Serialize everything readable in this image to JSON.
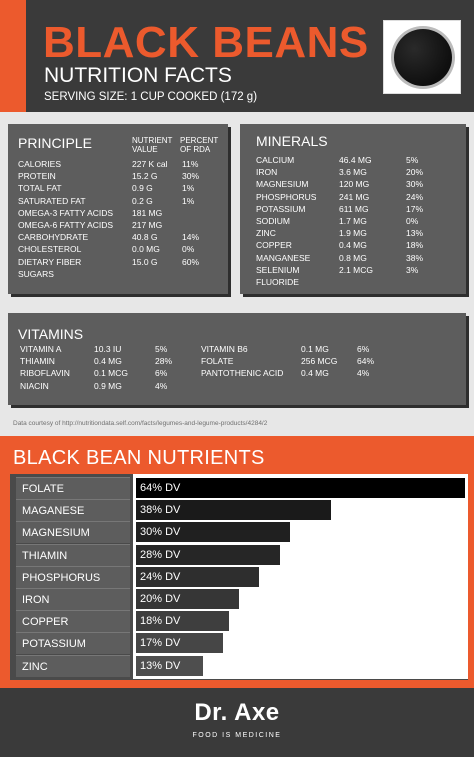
{
  "header": {
    "title": "BLACK BEANS",
    "subtitle": "NUTRITION FACTS",
    "serving": "SERVING SIZE: 1 CUP COOKED (172 g)",
    "colors": {
      "accent": "#ec5a2d",
      "dark": "#3a3a3a",
      "panel": "#5d5d5d"
    }
  },
  "principle": {
    "title": "PRINCIPLE",
    "col_value": "NUTRIENT VALUE",
    "col_value_l1": "NUTRIENT",
    "col_value_l2": "VALUE",
    "col_rda_l1": "PERCENT",
    "col_rda_l2": "OF RDA",
    "rows": [
      {
        "name": "CALORIES",
        "value": "227 K cal",
        "rda": "11%"
      },
      {
        "name": "PROTEIN",
        "value": "15.2 G",
        "rda": "30%"
      },
      {
        "name": "TOTAL FAT",
        "value": "0.9 G",
        "rda": "1%"
      },
      {
        "name": "SATURATED FAT",
        "value": "0.2 G",
        "rda": "1%"
      },
      {
        "name": "OMEGA-3 FATTY ACIDS",
        "value": "181 MG",
        "rda": ""
      },
      {
        "name": "OMEGA-6 FATTY ACIDS",
        "value": "217 MG",
        "rda": ""
      },
      {
        "name": "CARBOHYDRATE",
        "value": "40.8 G",
        "rda": "14%"
      },
      {
        "name": "CHOLESTEROL",
        "value": "0.0 MG",
        "rda": "0%"
      },
      {
        "name": "DIETARY FIBER",
        "value": "15.0 G",
        "rda": "60%"
      },
      {
        "name": "SUGARS",
        "value": "",
        "rda": ""
      }
    ]
  },
  "minerals": {
    "title": "MINERALS",
    "rows": [
      {
        "name": "CALCIUM",
        "value": "46.4 MG",
        "rda": "5%"
      },
      {
        "name": "IRON",
        "value": "3.6 MG",
        "rda": "20%"
      },
      {
        "name": "MAGNESIUM",
        "value": "120 MG",
        "rda": "30%"
      },
      {
        "name": "PHOSPHORUS",
        "value": "241 MG",
        "rda": "24%"
      },
      {
        "name": "POTASSIUM",
        "value": "611 MG",
        "rda": "17%"
      },
      {
        "name": "SODIUM",
        "value": "1.7 MG",
        "rda": "0%"
      },
      {
        "name": "ZINC",
        "value": "1.9 MG",
        "rda": "13%"
      },
      {
        "name": "COPPER",
        "value": "0.4 MG",
        "rda": "18%"
      },
      {
        "name": "MANGANESE",
        "value": "0.8 MG",
        "rda": "38%"
      },
      {
        "name": "SELENIUM",
        "value": "2.1 MCG",
        "rda": "3%"
      },
      {
        "name": "FLUORIDE",
        "value": "",
        "rda": ""
      }
    ]
  },
  "vitamins": {
    "title": "VITAMINS",
    "left": [
      {
        "name": "VITAMIN A",
        "value": "10.3 IU",
        "rda": "5%"
      },
      {
        "name": "THIAMIN",
        "value": "0.4 MG",
        "rda": "28%"
      },
      {
        "name": "RIBOFLAVIN",
        "value": "0.1 MCG",
        "rda": "6%"
      },
      {
        "name": "NIACIN",
        "value": "0.9 MG",
        "rda": "4%"
      }
    ],
    "right": [
      {
        "name": "VITAMIN B6",
        "value": "0.1 MG",
        "rda": "6%"
      },
      {
        "name": "FOLATE",
        "value": "256 MCG",
        "rda": "64%"
      },
      {
        "name": "PANTOTHENIC ACID",
        "value": "0.4 MG",
        "rda": "4%"
      }
    ]
  },
  "courtesy": "Data courtesy of http://nutritiondata.self.com/facts/legumes-and-legume-products/4284/2",
  "nutrients": {
    "title": "BLACK BEAN NUTRIENTS",
    "items": [
      {
        "label": "FOLATE",
        "value_label": "64% DV",
        "percent": 64,
        "color": "#000000"
      },
      {
        "label": "MAGANESE",
        "value_label": "38% DV",
        "percent": 38,
        "color": "#1a1a1a"
      },
      {
        "label": "MAGNESIUM",
        "value_label": "30% DV",
        "percent": 30,
        "color": "#202020"
      },
      {
        "label": "THIAMIN",
        "value_label": "28% DV",
        "percent": 28,
        "color": "#262626"
      },
      {
        "label": "PHOSPHORUS",
        "value_label": "24% DV",
        "percent": 24,
        "color": "#2e2e2e"
      },
      {
        "label": "IRON",
        "value_label": "20% DV",
        "percent": 20,
        "color": "#363636"
      },
      {
        "label": "COPPER",
        "value_label": "18% DV",
        "percent": 18,
        "color": "#3e3e3e"
      },
      {
        "label": "POTASSIUM",
        "value_label": "17% DV",
        "percent": 17,
        "color": "#464646"
      },
      {
        "label": "ZINC",
        "value_label": "13% DV",
        "percent": 13,
        "color": "#4e4e4e"
      }
    ]
  },
  "footer": {
    "logo": "Dr. Axe",
    "tagline": "FOOD IS MEDICINE"
  }
}
